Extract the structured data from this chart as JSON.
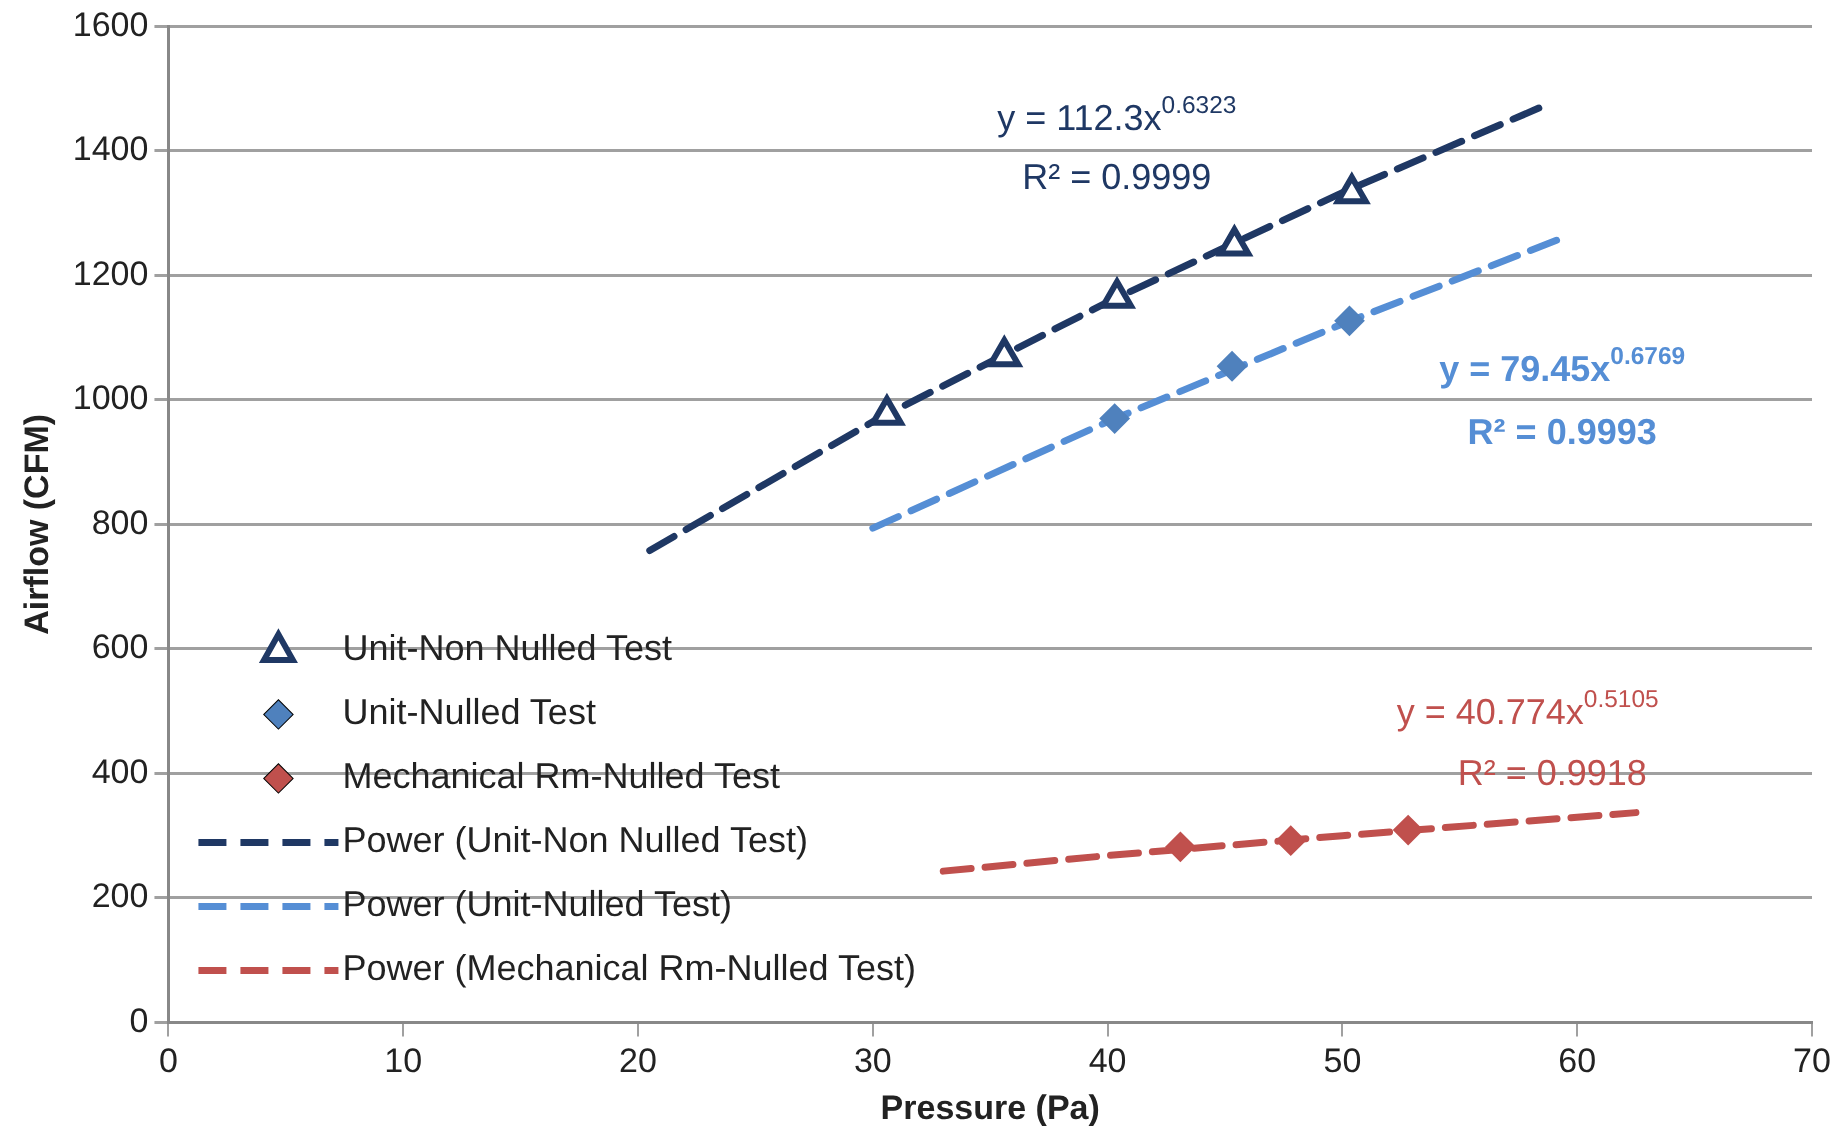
{
  "chart_data": {
    "type": "scatter",
    "xlabel": "Pressure (Pa)",
    "ylabel": "Airflow (CFM)",
    "xlim": [
      0,
      70
    ],
    "xticks": [
      0,
      10,
      20,
      30,
      40,
      50,
      60,
      70
    ],
    "ylim": [
      0,
      1600
    ],
    "yticks": [
      0,
      200,
      400,
      600,
      800,
      1000,
      1200,
      1400,
      1600
    ],
    "grid": "y",
    "legend": "bottom left",
    "series": [
      {
        "name": "Unit-Non Nulled Test",
        "marker": "triangle",
        "color": "#1f3864",
        "x": [
          30.6,
          35.6,
          40.4,
          45.4,
          50.4
        ],
        "values": [
          976,
          1070,
          1164,
          1248,
          1332
        ]
      },
      {
        "name": "Unit-Nulled Test",
        "marker": "diamond",
        "color": "#4f81bd",
        "x": [
          40.3,
          45.3,
          50.3
        ],
        "values": [
          970,
          1054,
          1127
        ]
      },
      {
        "name": "Mechanical Rm-Nulled Test",
        "marker": "diamond",
        "color": "#c0504d",
        "x": [
          43.1,
          47.8,
          52.8
        ],
        "values": [
          282,
          292,
          309
        ]
      },
      {
        "name": "Power (Unit-Non Nulled Test)",
        "type": "line",
        "line_style": "dashed",
        "marker": "none",
        "color": "#1f3864",
        "x": [
          20.5,
          30,
          40,
          50,
          58.5
        ],
        "values": [
          758,
          965,
          1157,
          1333,
          1471
        ]
      },
      {
        "name": "Power (Unit-Nulled Test)",
        "type": "line",
        "line_style": "dashed",
        "marker": "none",
        "color": "#558ed5",
        "x": [
          30,
          40,
          50,
          59.5
        ],
        "values": [
          794,
          965,
          1122,
          1262
        ]
      },
      {
        "name": "Power (Mechanical Rm-Nulled Test)",
        "type": "line",
        "line_style": "dashed",
        "marker": "none",
        "color": "#c0504d",
        "x": [
          33,
          40,
          50,
          62.5
        ],
        "values": [
          243,
          268,
          300,
          337
        ]
      }
    ],
    "annotations": [
      "y = 112.3x$^{0.6323}$",
      "R² = 0.9999",
      "y = 79.45x$^{0.6769}$",
      "R² = 0.9993",
      "y = 40.774x$^{0.5105}$",
      "R² = 0.9918"
    ]
  }
}
